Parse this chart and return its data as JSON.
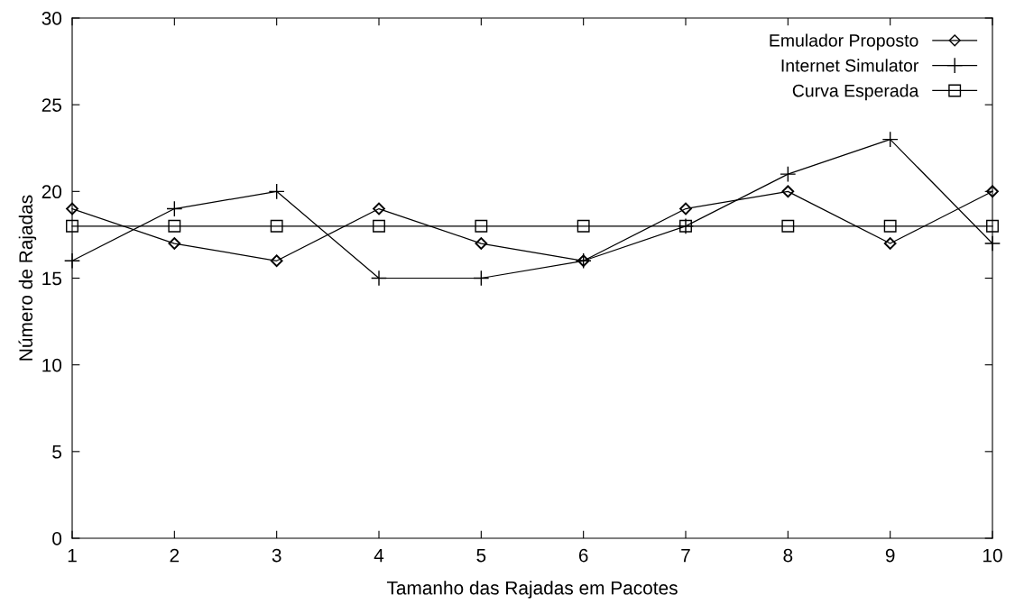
{
  "chart_data": {
    "type": "line",
    "xlabel": "Tamanho das Rajadas em Pacotes",
    "ylabel": "Número de Rajadas",
    "x": [
      1,
      2,
      3,
      4,
      5,
      6,
      7,
      8,
      9,
      10
    ],
    "series": [
      {
        "name": "Emulador Proposto",
        "color": "#000000",
        "marker": "diamond",
        "values": [
          19,
          17,
          16,
          19,
          17,
          16,
          19,
          20,
          17,
          20
        ]
      },
      {
        "name": "Internet Simulator",
        "color": "#000000",
        "marker": "cross",
        "values": [
          16,
          19,
          20,
          15,
          15,
          16,
          18,
          21,
          23,
          17
        ]
      },
      {
        "name": "Curva Esperada",
        "color": "#000000",
        "marker": "square",
        "values": [
          18,
          18,
          18,
          18,
          18,
          18,
          18,
          18,
          18,
          18
        ]
      }
    ],
    "xlim": [
      1,
      10
    ],
    "xticks": [
      1,
      2,
      3,
      4,
      5,
      6,
      7,
      8,
      9,
      10
    ],
    "ylim": [
      0,
      30
    ],
    "yticks": [
      0,
      5,
      10,
      15,
      20,
      25,
      30
    ],
    "grid": false,
    "legend": "top right",
    "line_style": "solid"
  }
}
